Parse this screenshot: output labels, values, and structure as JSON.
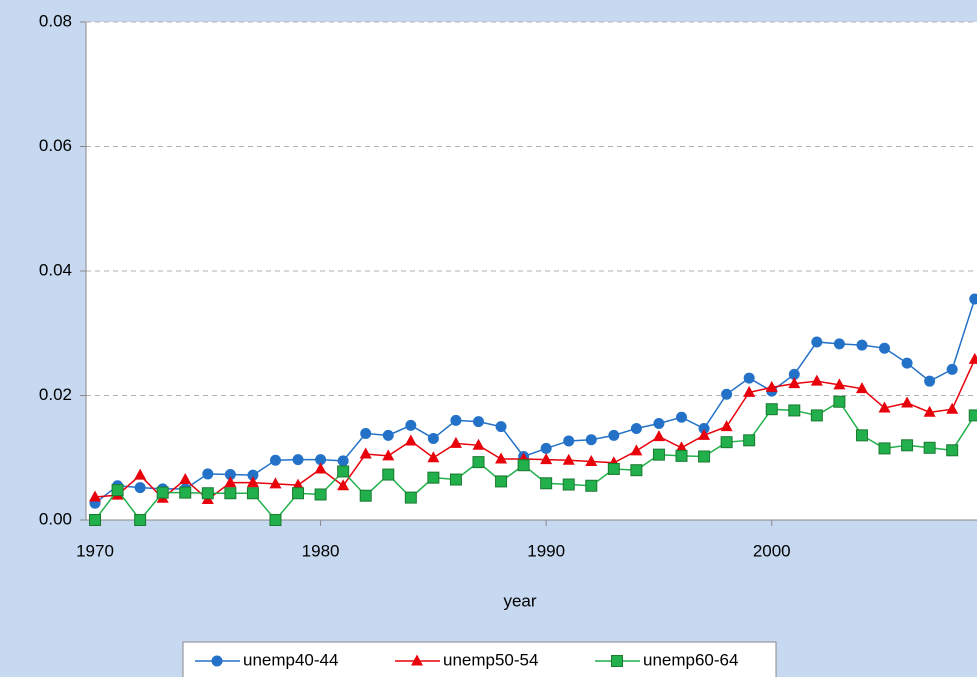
{
  "chart_data": {
    "type": "line",
    "x_label": "year",
    "x": [
      1970,
      1971,
      1972,
      1973,
      1974,
      1975,
      1976,
      1977,
      1978,
      1979,
      1980,
      1981,
      1982,
      1983,
      1984,
      1985,
      1986,
      1987,
      1988,
      1989,
      1990,
      1991,
      1992,
      1993,
      1994,
      1995,
      1996,
      1997,
      1998,
      1999,
      2000,
      2001,
      2002,
      2003,
      2004,
      2005,
      2006,
      2007,
      2008,
      2009
    ],
    "series": [
      {
        "name": "unemp40-44",
        "color": "#2472c8",
        "marker": "circle",
        "values": [
          0.0027,
          0.0055,
          0.0052,
          0.005,
          0.005,
          0.0074,
          0.0073,
          0.0072,
          0.0096,
          0.0097,
          0.0097,
          0.0095,
          0.0139,
          0.0136,
          0.0152,
          0.0131,
          0.016,
          0.0158,
          0.015,
          0.0102,
          0.0115,
          0.0127,
          0.0129,
          0.0136,
          0.0147,
          0.0155,
          0.0165,
          0.0147,
          0.0202,
          0.0228,
          0.0207,
          0.0234,
          0.0286,
          0.0283,
          0.0281,
          0.0276,
          0.0252,
          0.0223,
          0.0242,
          0.0355
        ]
      },
      {
        "name": "unemp50-54",
        "color": "#e8000b",
        "marker": "triangle",
        "values": [
          0.0037,
          0.004,
          0.0072,
          0.0035,
          0.0065,
          0.0033,
          0.006,
          0.006,
          0.0058,
          0.0056,
          0.0082,
          0.0055,
          0.0106,
          0.0103,
          0.0127,
          0.01,
          0.0123,
          0.012,
          0.0098,
          0.0098,
          0.0097,
          0.0096,
          0.0094,
          0.0092,
          0.0111,
          0.0134,
          0.0116,
          0.0136,
          0.015,
          0.0205,
          0.0213,
          0.0219,
          0.0223,
          0.0217,
          0.0211,
          0.018,
          0.0188,
          0.0173,
          0.0178,
          0.0258
        ]
      },
      {
        "name": "unemp60-64",
        "color": "#21b04b",
        "marker": "square",
        "values": [
          0,
          0.0048,
          0,
          0.0044,
          0.0044,
          0.0043,
          0.0043,
          0.0043,
          0,
          0.0043,
          0.0041,
          0.0078,
          0.0039,
          0.0073,
          0.0036,
          0.0068,
          0.0065,
          0.0093,
          0.0062,
          0.0088,
          0.0059,
          0.0057,
          0.0055,
          0.0082,
          0.008,
          0.0105,
          0.0103,
          0.0102,
          0.0125,
          0.0128,
          0.0178,
          0.0176,
          0.0168,
          0.019,
          0.0136,
          0.0115,
          0.012,
          0.0116,
          0.0112,
          0.0168
        ]
      }
    ],
    "xlim": [
      1969.6,
      2009.1
    ],
    "xticks": [
      1970,
      1980,
      1990,
      2000
    ],
    "ylim": [
      0,
      0.08
    ],
    "yticks": [
      {
        "value": 0,
        "label": "0.00"
      },
      0.02,
      0.04,
      0.06,
      0.08
    ],
    "grid": true,
    "legend": "bottom"
  }
}
